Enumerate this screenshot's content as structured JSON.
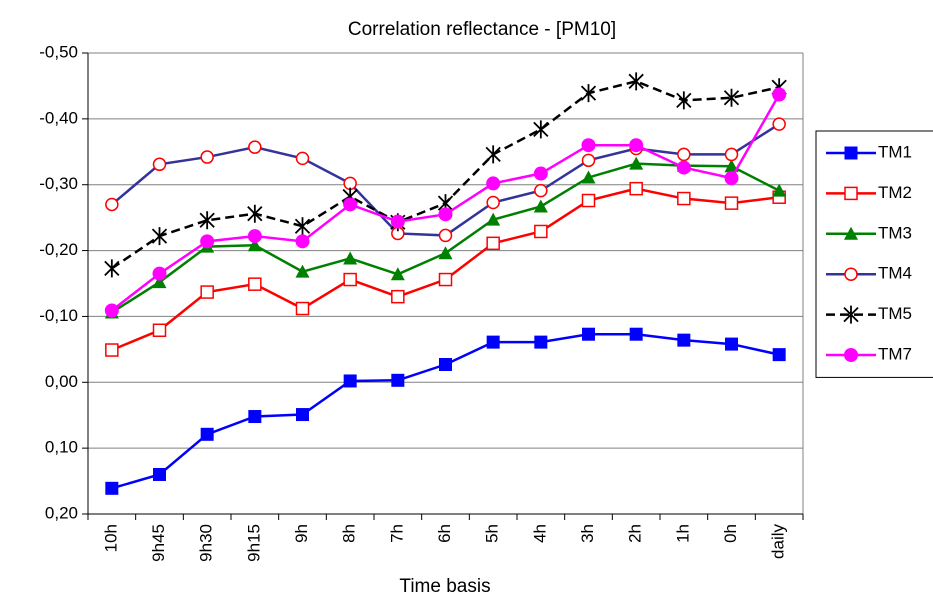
{
  "chart_data": {
    "type": "line",
    "title": "Correlation reflectance - [PM10]",
    "x_label": "Time basis",
    "categories": [
      "10h",
      "9h45",
      "9h30",
      "9h15",
      "9h",
      "8h",
      "7h",
      "6h",
      "5h",
      "4h",
      "3h",
      "2h",
      "1h",
      "0h",
      "daily"
    ],
    "ylim": [
      -0.5,
      0.2
    ],
    "y_inverted": true,
    "yticks": [
      {
        "value": -0.5,
        "label": "-0,50"
      },
      {
        "value": -0.4,
        "label": "-0,40"
      },
      {
        "value": -0.3,
        "label": "-0,30"
      },
      {
        "value": -0.2,
        "label": "-0,20"
      },
      {
        "value": -0.1,
        "label": "-0,10"
      },
      {
        "value": 0,
        "label": "0,00"
      },
      {
        "value": 0.1,
        "label": "0,10"
      },
      {
        "value": 0.2,
        "label": "0,20"
      }
    ],
    "grid": true,
    "legend": "right",
    "series": [
      {
        "name": "TM1",
        "color": "#0000ff",
        "marker": "square",
        "marker_color": "#0000ff",
        "values": [
          0.161,
          0.14,
          0.079,
          0.052,
          0.049,
          -0.002,
          -0.003,
          -0.027,
          -0.061,
          -0.061,
          -0.073,
          -0.073,
          -0.064,
          -0.058,
          -0.042
        ]
      },
      {
        "name": "TM2",
        "color": "#ff0000",
        "marker": "square-open",
        "marker_color": "#ff0000",
        "values": [
          -0.049,
          -0.079,
          -0.137,
          -0.149,
          -0.112,
          -0.156,
          -0.13,
          -0.156,
          -0.211,
          -0.229,
          -0.276,
          -0.294,
          -0.279,
          -0.272,
          -0.281
        ]
      },
      {
        "name": "TM3",
        "color": "#008000",
        "marker": "triangle",
        "marker_color": "#008000",
        "values": [
          -0.106,
          -0.152,
          -0.206,
          -0.208,
          -0.168,
          -0.188,
          -0.164,
          -0.196,
          -0.247,
          -0.267,
          -0.311,
          -0.332,
          -0.329,
          -0.328,
          -0.291
        ]
      },
      {
        "name": "TM4",
        "color": "#333399",
        "marker": "circle-open",
        "marker_color": "#ff0000",
        "values": [
          -0.27,
          -0.331,
          -0.342,
          -0.357,
          -0.34,
          -0.302,
          -0.226,
          -0.223,
          -0.273,
          -0.291,
          -0.337,
          -0.355,
          -0.346,
          -0.346,
          -0.392
        ]
      },
      {
        "name": "TM5",
        "color": "#000000",
        "dashed": true,
        "marker": "star",
        "marker_color": "#000000",
        "values": [
          -0.173,
          -0.222,
          -0.246,
          -0.256,
          -0.237,
          -0.282,
          -0.243,
          -0.272,
          -0.346,
          -0.384,
          -0.439,
          -0.457,
          -0.428,
          -0.432,
          -0.448
        ]
      },
      {
        "name": "TM7",
        "color": "#ff00ff",
        "marker": "circle",
        "marker_color": "#ff00ff",
        "values": [
          -0.109,
          -0.165,
          -0.214,
          -0.222,
          -0.214,
          -0.27,
          -0.244,
          -0.255,
          -0.302,
          -0.317,
          -0.36,
          -0.36,
          -0.326,
          -0.31,
          -0.437
        ]
      }
    ]
  }
}
